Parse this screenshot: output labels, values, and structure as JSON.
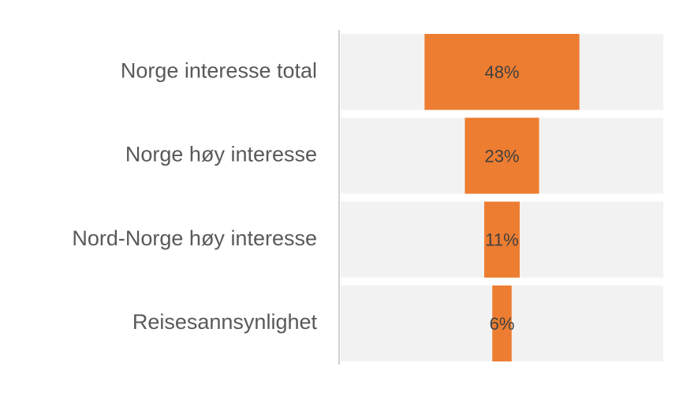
{
  "chart_data": {
    "type": "funnel",
    "categories": [
      "Norge interesse total",
      "Norge høy interesse",
      "Nord-Norge høy interesse",
      "Reisesannsynlighet"
    ],
    "values": [
      48,
      23,
      11,
      6
    ],
    "value_labels": [
      "48%",
      "23%",
      "11%",
      "6%"
    ],
    "color": "#ed7d31",
    "xlim": [
      0,
      100
    ]
  }
}
